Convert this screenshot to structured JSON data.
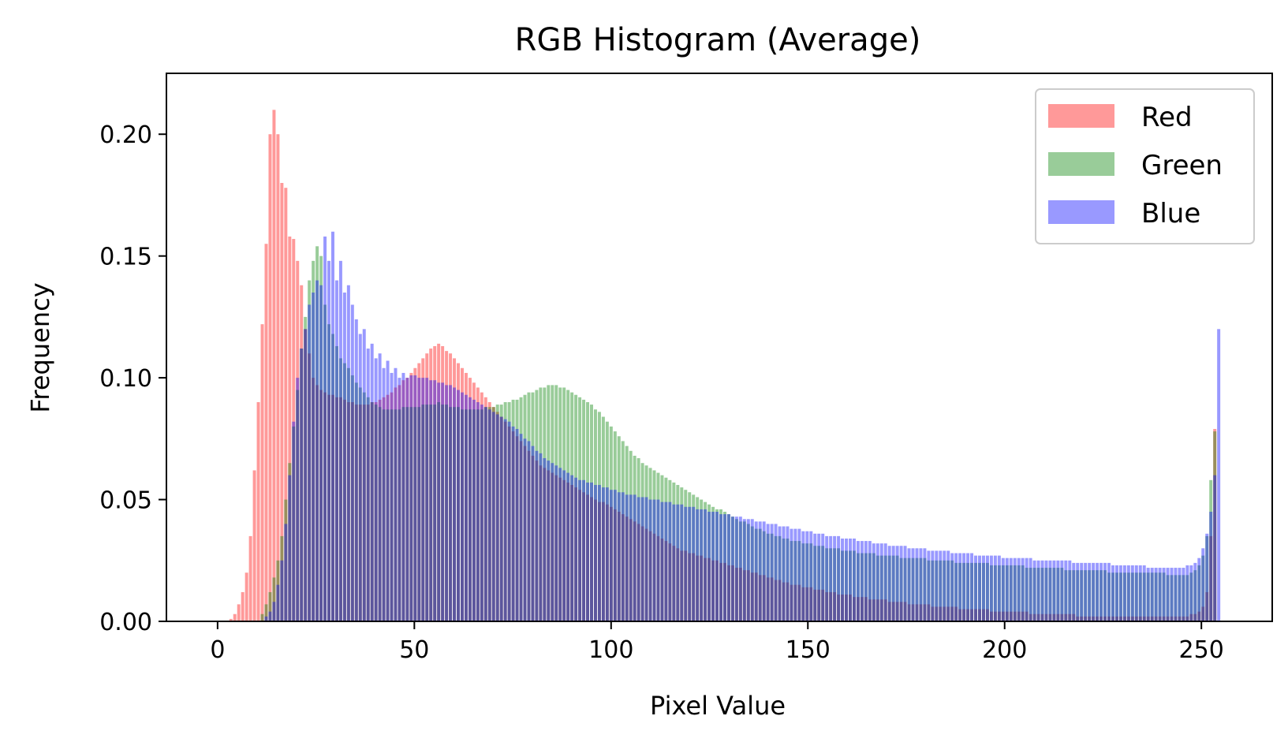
{
  "chart_data": {
    "type": "bar",
    "title": "RGB Histogram (Average)",
    "xlabel": "Pixel Value",
    "ylabel": "Frequency",
    "xlim": [
      -13,
      268
    ],
    "ylim": [
      0,
      0.225
    ],
    "xticks": [
      0,
      50,
      100,
      150,
      200,
      250
    ],
    "xtick_labels": [
      "0",
      "50",
      "100",
      "150",
      "200",
      "250"
    ],
    "yticks": [
      0.0,
      0.05,
      0.1,
      0.15,
      0.2
    ],
    "ytick_labels": [
      "0.00",
      "0.05",
      "0.10",
      "0.15",
      "0.20"
    ],
    "grid": false,
    "legend": {
      "placement": "top-right",
      "entries": [
        "Red",
        "Green",
        "Blue"
      ]
    },
    "x_range": [
      0,
      255
    ],
    "series": [
      {
        "name": "Red",
        "color": "#ff0000",
        "alpha": 0.4,
        "values": [
          0,
          0,
          0,
          0.001,
          0.003,
          0.007,
          0.012,
          0.02,
          0.035,
          0.062,
          0.09,
          0.122,
          0.155,
          0.2,
          0.21,
          0.2,
          0.18,
          0.178,
          0.158,
          0.157,
          0.148,
          0.138,
          0.12,
          0.11,
          0.1,
          0.097,
          0.095,
          0.094,
          0.093,
          0.093,
          0.092,
          0.092,
          0.091,
          0.09,
          0.09,
          0.089,
          0.089,
          0.089,
          0.089,
          0.09,
          0.09,
          0.091,
          0.092,
          0.093,
          0.094,
          0.096,
          0.097,
          0.099,
          0.1,
          0.102,
          0.104,
          0.106,
          0.108,
          0.11,
          0.112,
          0.113,
          0.114,
          0.113,
          0.111,
          0.11,
          0.108,
          0.106,
          0.104,
          0.102,
          0.1,
          0.098,
          0.096,
          0.094,
          0.092,
          0.09,
          0.088,
          0.086,
          0.084,
          0.082,
          0.08,
          0.078,
          0.076,
          0.074,
          0.072,
          0.07,
          0.068,
          0.066,
          0.064,
          0.063,
          0.062,
          0.061,
          0.06,
          0.059,
          0.058,
          0.057,
          0.056,
          0.055,
          0.054,
          0.053,
          0.052,
          0.051,
          0.05,
          0.049,
          0.049,
          0.048,
          0.047,
          0.046,
          0.045,
          0.044,
          0.043,
          0.042,
          0.041,
          0.04,
          0.039,
          0.038,
          0.037,
          0.036,
          0.035,
          0.034,
          0.033,
          0.032,
          0.031,
          0.03,
          0.029,
          0.029,
          0.028,
          0.028,
          0.027,
          0.027,
          0.026,
          0.026,
          0.025,
          0.025,
          0.024,
          0.024,
          0.023,
          0.023,
          0.022,
          0.022,
          0.021,
          0.021,
          0.02,
          0.02,
          0.019,
          0.019,
          0.018,
          0.018,
          0.017,
          0.017,
          0.016,
          0.016,
          0.015,
          0.015,
          0.015,
          0.014,
          0.014,
          0.014,
          0.013,
          0.013,
          0.013,
          0.012,
          0.012,
          0.012,
          0.011,
          0.011,
          0.011,
          0.011,
          0.01,
          0.01,
          0.01,
          0.01,
          0.009,
          0.009,
          0.009,
          0.009,
          0.009,
          0.008,
          0.008,
          0.008,
          0.008,
          0.008,
          0.007,
          0.007,
          0.007,
          0.007,
          0.007,
          0.007,
          0.006,
          0.006,
          0.006,
          0.006,
          0.006,
          0.006,
          0.006,
          0.005,
          0.005,
          0.005,
          0.005,
          0.005,
          0.005,
          0.005,
          0.005,
          0.004,
          0.004,
          0.004,
          0.004,
          0.004,
          0.004,
          0.004,
          0.004,
          0.004,
          0.004,
          0.003,
          0.003,
          0.003,
          0.003,
          0.003,
          0.003,
          0.003,
          0.003,
          0.003,
          0.003,
          0.003,
          0.003,
          0.002,
          0.002,
          0.002,
          0.002,
          0.002,
          0.002,
          0.002,
          0.002,
          0.002,
          0.002,
          0.002,
          0.002,
          0.002,
          0.002,
          0.002,
          0.002,
          0.002,
          0.002,
          0.002,
          0.002,
          0.002,
          0.002,
          0.002,
          0.002,
          0.002,
          0.002,
          0.002,
          0.002,
          0.002,
          0.003,
          0.003,
          0.004,
          0.006,
          0.012,
          0.035,
          0.079
        ]
      },
      {
        "name": "Green",
        "color": "#008000",
        "alpha": 0.4,
        "values": [
          0,
          0,
          0,
          0,
          0,
          0,
          0,
          0,
          0,
          0,
          0,
          0.003,
          0.007,
          0.012,
          0.018,
          0.025,
          0.035,
          0.05,
          0.065,
          0.08,
          0.095,
          0.112,
          0.125,
          0.14,
          0.148,
          0.154,
          0.15,
          0.13,
          0.122,
          0.118,
          0.113,
          0.108,
          0.106,
          0.104,
          0.101,
          0.098,
          0.096,
          0.094,
          0.092,
          0.09,
          0.089,
          0.088,
          0.087,
          0.087,
          0.087,
          0.087,
          0.087,
          0.088,
          0.088,
          0.088,
          0.088,
          0.088,
          0.089,
          0.089,
          0.089,
          0.089,
          0.09,
          0.089,
          0.089,
          0.088,
          0.088,
          0.088,
          0.087,
          0.087,
          0.087,
          0.087,
          0.087,
          0.087,
          0.088,
          0.088,
          0.088,
          0.089,
          0.089,
          0.09,
          0.09,
          0.091,
          0.091,
          0.092,
          0.093,
          0.094,
          0.094,
          0.095,
          0.096,
          0.096,
          0.097,
          0.097,
          0.097,
          0.096,
          0.096,
          0.095,
          0.094,
          0.093,
          0.092,
          0.091,
          0.09,
          0.089,
          0.087,
          0.086,
          0.084,
          0.082,
          0.08,
          0.078,
          0.076,
          0.074,
          0.072,
          0.07,
          0.068,
          0.067,
          0.065,
          0.064,
          0.063,
          0.062,
          0.061,
          0.06,
          0.059,
          0.058,
          0.057,
          0.056,
          0.055,
          0.054,
          0.053,
          0.052,
          0.051,
          0.05,
          0.049,
          0.048,
          0.047,
          0.046,
          0.046,
          0.045,
          0.044,
          0.043,
          0.042,
          0.041,
          0.041,
          0.04,
          0.039,
          0.038,
          0.038,
          0.037,
          0.036,
          0.036,
          0.035,
          0.035,
          0.034,
          0.034,
          0.033,
          0.033,
          0.033,
          0.032,
          0.032,
          0.032,
          0.031,
          0.031,
          0.031,
          0.03,
          0.03,
          0.03,
          0.03,
          0.029,
          0.029,
          0.029,
          0.029,
          0.028,
          0.028,
          0.028,
          0.028,
          0.028,
          0.027,
          0.027,
          0.027,
          0.027,
          0.027,
          0.027,
          0.026,
          0.026,
          0.026,
          0.026,
          0.026,
          0.026,
          0.026,
          0.025,
          0.025,
          0.025,
          0.025,
          0.025,
          0.025,
          0.025,
          0.024,
          0.024,
          0.024,
          0.024,
          0.024,
          0.024,
          0.024,
          0.024,
          0.024,
          0.023,
          0.023,
          0.023,
          0.023,
          0.023,
          0.023,
          0.023,
          0.023,
          0.023,
          0.022,
          0.022,
          0.022,
          0.022,
          0.022,
          0.022,
          0.022,
          0.022,
          0.022,
          0.022,
          0.021,
          0.021,
          0.021,
          0.021,
          0.021,
          0.021,
          0.021,
          0.021,
          0.021,
          0.021,
          0.021,
          0.02,
          0.02,
          0.02,
          0.02,
          0.02,
          0.02,
          0.02,
          0.02,
          0.02,
          0.02,
          0.02,
          0.02,
          0.02,
          0.02,
          0.02,
          0.019,
          0.019,
          0.019,
          0.019,
          0.019,
          0.019,
          0.02,
          0.021,
          0.023,
          0.027,
          0.035,
          0.058,
          0.078
        ]
      },
      {
        "name": "Blue",
        "color": "#0000ff",
        "alpha": 0.4,
        "values": [
          0,
          0,
          0,
          0,
          0,
          0,
          0,
          0,
          0,
          0,
          0,
          0,
          0.002,
          0.004,
          0.008,
          0.015,
          0.025,
          0.04,
          0.06,
          0.082,
          0.1,
          0.112,
          0.12,
          0.13,
          0.135,
          0.14,
          0.138,
          0.158,
          0.148,
          0.16,
          0.14,
          0.148,
          0.135,
          0.138,
          0.13,
          0.124,
          0.118,
          0.12,
          0.112,
          0.114,
          0.108,
          0.11,
          0.104,
          0.107,
          0.102,
          0.104,
          0.1,
          0.102,
          0.1,
          0.101,
          0.101,
          0.1,
          0.1,
          0.1,
          0.099,
          0.099,
          0.098,
          0.098,
          0.097,
          0.097,
          0.096,
          0.095,
          0.094,
          0.093,
          0.092,
          0.091,
          0.09,
          0.089,
          0.088,
          0.087,
          0.086,
          0.085,
          0.084,
          0.083,
          0.082,
          0.08,
          0.079,
          0.077,
          0.075,
          0.074,
          0.072,
          0.07,
          0.069,
          0.067,
          0.066,
          0.065,
          0.064,
          0.063,
          0.062,
          0.061,
          0.06,
          0.059,
          0.058,
          0.058,
          0.057,
          0.057,
          0.056,
          0.056,
          0.055,
          0.055,
          0.054,
          0.054,
          0.053,
          0.053,
          0.052,
          0.052,
          0.052,
          0.051,
          0.051,
          0.051,
          0.05,
          0.05,
          0.05,
          0.049,
          0.049,
          0.049,
          0.048,
          0.048,
          0.048,
          0.047,
          0.047,
          0.047,
          0.046,
          0.046,
          0.046,
          0.045,
          0.045,
          0.045,
          0.044,
          0.044,
          0.044,
          0.043,
          0.043,
          0.043,
          0.042,
          0.042,
          0.042,
          0.041,
          0.041,
          0.041,
          0.04,
          0.04,
          0.04,
          0.039,
          0.039,
          0.039,
          0.038,
          0.038,
          0.038,
          0.037,
          0.037,
          0.037,
          0.036,
          0.036,
          0.036,
          0.035,
          0.035,
          0.035,
          0.035,
          0.034,
          0.034,
          0.034,
          0.034,
          0.033,
          0.033,
          0.033,
          0.033,
          0.032,
          0.032,
          0.032,
          0.032,
          0.031,
          0.031,
          0.031,
          0.031,
          0.031,
          0.03,
          0.03,
          0.03,
          0.03,
          0.03,
          0.029,
          0.029,
          0.029,
          0.029,
          0.029,
          0.029,
          0.028,
          0.028,
          0.028,
          0.028,
          0.028,
          0.028,
          0.027,
          0.027,
          0.027,
          0.027,
          0.027,
          0.027,
          0.027,
          0.026,
          0.026,
          0.026,
          0.026,
          0.026,
          0.026,
          0.026,
          0.026,
          0.025,
          0.025,
          0.025,
          0.025,
          0.025,
          0.025,
          0.025,
          0.025,
          0.025,
          0.025,
          0.024,
          0.024,
          0.024,
          0.024,
          0.024,
          0.024,
          0.024,
          0.024,
          0.024,
          0.024,
          0.023,
          0.023,
          0.023,
          0.023,
          0.023,
          0.023,
          0.023,
          0.023,
          0.023,
          0.022,
          0.022,
          0.022,
          0.022,
          0.022,
          0.022,
          0.022,
          0.022,
          0.022,
          0.022,
          0.023,
          0.023,
          0.024,
          0.026,
          0.03,
          0.036,
          0.045,
          0.06,
          0.12
        ]
      }
    ]
  }
}
